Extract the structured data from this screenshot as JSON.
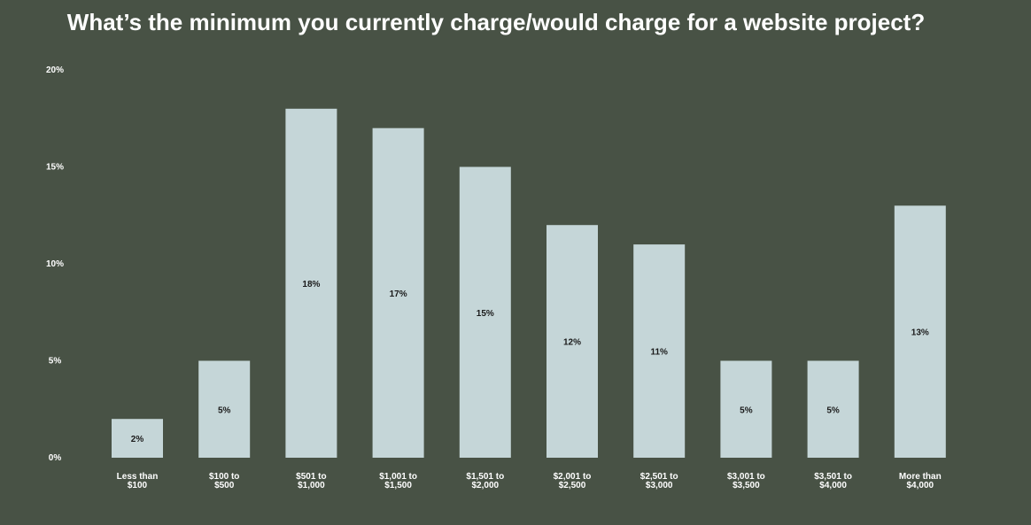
{
  "chart_data": {
    "type": "bar",
    "title": "What’s the minimum you currently charge/would charge for a website project?",
    "xlabel": "",
    "ylabel": "",
    "ylim": [
      0,
      20
    ],
    "yticks": [
      "0%",
      "5%",
      "10%",
      "15%",
      "20%"
    ],
    "ytick_values": [
      0,
      5,
      10,
      15,
      20
    ],
    "categories": [
      [
        "Less than",
        "$100"
      ],
      [
        "$100 to",
        "$500"
      ],
      [
        "$501 to",
        "$1,000"
      ],
      [
        "$1,001 to",
        "$1,500"
      ],
      [
        "$1,501 to",
        "$2,000"
      ],
      [
        "$2,001 to",
        "$2,500"
      ],
      [
        "$2,501 to",
        "$3,000"
      ],
      [
        "$3,001 to",
        "$3,500"
      ],
      [
        "$3,501 to",
        "$4,000"
      ],
      [
        "More than",
        "$4,000"
      ]
    ],
    "values": [
      2,
      5,
      18,
      17,
      15,
      12,
      11,
      5,
      5,
      13
    ],
    "data_labels": [
      "2%",
      "5%",
      "18%",
      "17%",
      "15%",
      "12%",
      "11%",
      "5%",
      "5%",
      "13%"
    ],
    "colors": {
      "background": "#485245",
      "bar": "#c5d6d8",
      "text": "#ffffff",
      "label": "#1a1a1a"
    },
    "grid": false,
    "legend": "none"
  }
}
